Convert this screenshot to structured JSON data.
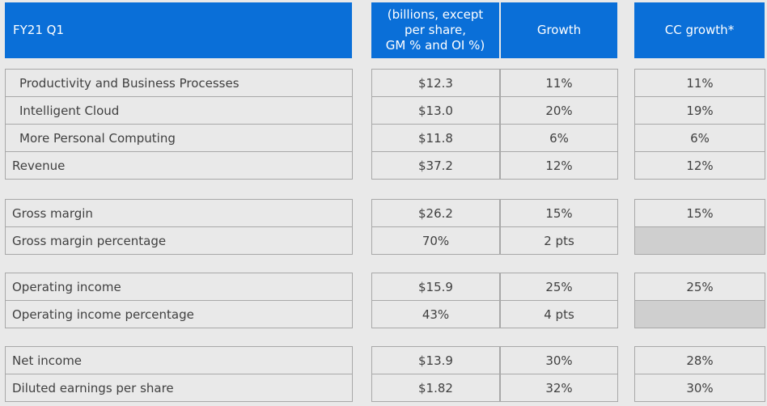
{
  "header": {
    "period": "FY21 Q1",
    "units_line1": "(billions, except",
    "units_line2": "per share,",
    "units_line3": "GM % and OI %)",
    "growth": "Growth",
    "cc_growth": "CC growth*"
  },
  "groups": [
    [
      {
        "label": "Productivity and Business Processes",
        "indent": true,
        "value": "$12.3",
        "growth": "11%",
        "cc": "11%"
      },
      {
        "label": "Intelligent Cloud",
        "indent": true,
        "value": "$13.0",
        "growth": "20%",
        "cc": "19%"
      },
      {
        "label": "More Personal Computing",
        "indent": true,
        "value": "$11.8",
        "growth": "6%",
        "cc": "6%"
      },
      {
        "label": "Revenue",
        "indent": false,
        "value": "$37.2",
        "growth": "12%",
        "cc": "12%"
      }
    ],
    [
      {
        "label": "Gross margin",
        "indent": false,
        "value": "$26.2",
        "growth": "15%",
        "cc": "15%"
      },
      {
        "label": "Gross margin percentage",
        "indent": false,
        "value": "70%",
        "growth": "2 pts",
        "cc": ""
      }
    ],
    [
      {
        "label": "Operating income",
        "indent": false,
        "value": "$15.9",
        "growth": "25%",
        "cc": "25%"
      },
      {
        "label": "Operating income percentage",
        "indent": false,
        "value": "43%",
        "growth": "4 pts",
        "cc": ""
      }
    ],
    [
      {
        "label": "Net income",
        "indent": false,
        "value": "$13.9",
        "growth": "30%",
        "cc": "28%"
      },
      {
        "label": "Diluted earnings per share",
        "indent": false,
        "value": "$1.82",
        "growth": "32%",
        "cc": "30%"
      }
    ]
  ],
  "colors": {
    "header_bg": "#0a6fd8",
    "row_bg": "#e9e9e9",
    "empty_cell_bg": "#cfcfcf"
  }
}
